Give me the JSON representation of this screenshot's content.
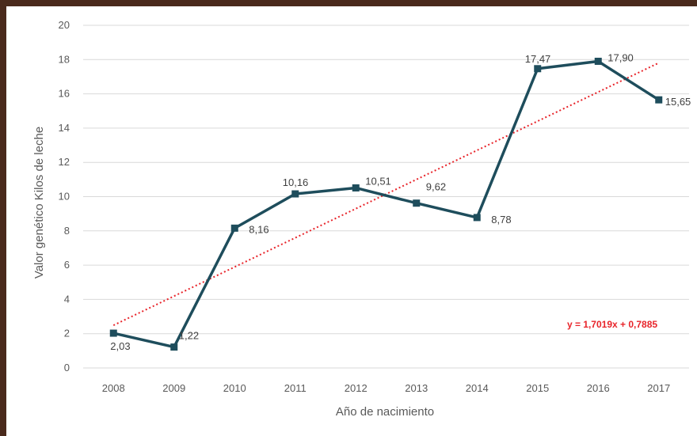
{
  "chart_data": {
    "type": "line",
    "xlabel": "Año de nacimiento",
    "ylabel": "Valor genético Kilos de leche",
    "ylim": [
      0,
      20
    ],
    "yticks": [
      "0",
      "2",
      "4",
      "6",
      "8",
      "10",
      "12",
      "14",
      "16",
      "18",
      "20"
    ],
    "categories": [
      "2008",
      "2009",
      "2010",
      "2011",
      "2012",
      "2013",
      "2014",
      "2015",
      "2016",
      "2017"
    ],
    "series": [
      {
        "values": [
          2.03,
          1.22,
          8.16,
          10.16,
          10.51,
          9.62,
          8.78,
          17.47,
          17.9,
          15.65
        ],
        "data_labels": [
          "2,03",
          "1,22",
          "8,16",
          "10,16",
          "10,51",
          "9,62",
          "8,78",
          "17,47",
          "17,90",
          "15,65"
        ],
        "color": "#1e4d5c"
      }
    ],
    "trendline": {
      "type": "linear",
      "slope": 1.7019,
      "intercept": 0.7885,
      "label": "y = 1,7019x + 0,7885",
      "color": "#e8242a",
      "style": "dotted"
    },
    "grid": true,
    "legend": "none"
  }
}
